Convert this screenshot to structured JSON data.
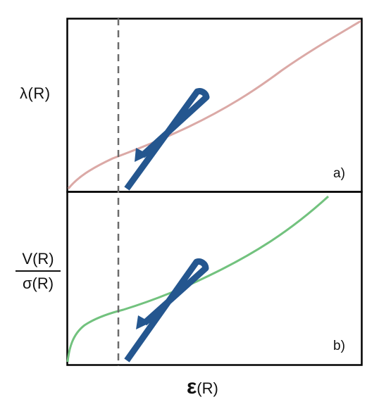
{
  "labels": {
    "y_top": "λ(R)",
    "y_bottom_numerator": "V(R)",
    "y_bottom_denominator": "σ(R)",
    "x_symbol": "ε",
    "x_argument": "(R)",
    "panel_a": "a)",
    "panel_b": "b)"
  },
  "colors": {
    "frame": "#000000",
    "curve_a": "#dba9a6",
    "curve_b": "#72c27e",
    "arrow": "#24568f",
    "dashed_line": "#6b6b6b"
  },
  "icons": {
    "arrow_a": "hairpin-arrow-icon",
    "arrow_b": "hairpin-arrow-icon"
  }
}
